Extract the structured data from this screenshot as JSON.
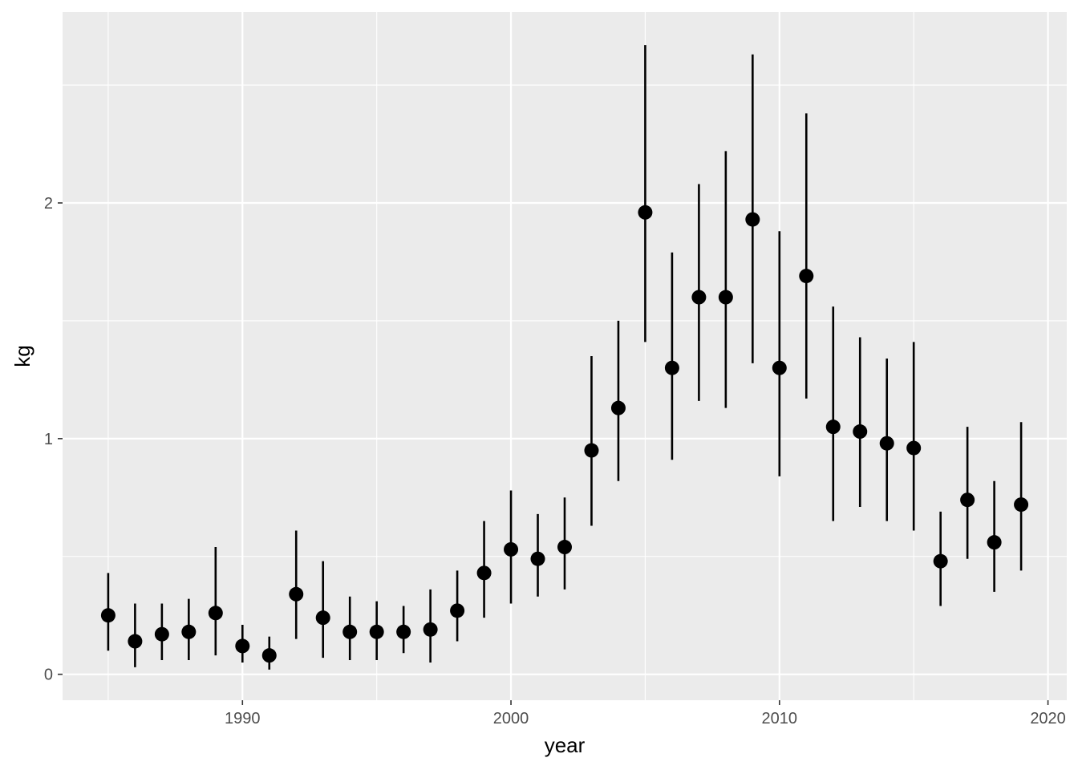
{
  "chart_data": {
    "type": "scatter",
    "xlabel": "year",
    "ylabel": "kg",
    "xlim": [
      1983.3,
      2020.7
    ],
    "ylim": [
      -0.11,
      2.81
    ],
    "x_ticks": [
      1990,
      2000,
      2010,
      2020
    ],
    "y_ticks": [
      0,
      1,
      2
    ],
    "grid": true,
    "background": "#ebebeb",
    "point_color": "#000000",
    "points": [
      {
        "x": 1985,
        "y": 0.25,
        "lo": 0.1,
        "hi": 0.43
      },
      {
        "x": 1986,
        "y": 0.14,
        "lo": 0.03,
        "hi": 0.3
      },
      {
        "x": 1987,
        "y": 0.17,
        "lo": 0.06,
        "hi": 0.3
      },
      {
        "x": 1988,
        "y": 0.18,
        "lo": 0.06,
        "hi": 0.32
      },
      {
        "x": 1989,
        "y": 0.26,
        "lo": 0.08,
        "hi": 0.54
      },
      {
        "x": 1990,
        "y": 0.12,
        "lo": 0.05,
        "hi": 0.21
      },
      {
        "x": 1991,
        "y": 0.08,
        "lo": 0.02,
        "hi": 0.16
      },
      {
        "x": 1992,
        "y": 0.34,
        "lo": 0.15,
        "hi": 0.61
      },
      {
        "x": 1993,
        "y": 0.24,
        "lo": 0.07,
        "hi": 0.48
      },
      {
        "x": 1994,
        "y": 0.18,
        "lo": 0.06,
        "hi": 0.33
      },
      {
        "x": 1995,
        "y": 0.18,
        "lo": 0.06,
        "hi": 0.31
      },
      {
        "x": 1996,
        "y": 0.18,
        "lo": 0.09,
        "hi": 0.29
      },
      {
        "x": 1997,
        "y": 0.19,
        "lo": 0.05,
        "hi": 0.36
      },
      {
        "x": 1998,
        "y": 0.27,
        "lo": 0.14,
        "hi": 0.44
      },
      {
        "x": 1999,
        "y": 0.43,
        "lo": 0.24,
        "hi": 0.65
      },
      {
        "x": 2000,
        "y": 0.53,
        "lo": 0.3,
        "hi": 0.78
      },
      {
        "x": 2001,
        "y": 0.49,
        "lo": 0.33,
        "hi": 0.68
      },
      {
        "x": 2002,
        "y": 0.54,
        "lo": 0.36,
        "hi": 0.75
      },
      {
        "x": 2003,
        "y": 0.95,
        "lo": 0.63,
        "hi": 1.35
      },
      {
        "x": 2004,
        "y": 1.13,
        "lo": 0.82,
        "hi": 1.5
      },
      {
        "x": 2005,
        "y": 1.96,
        "lo": 1.41,
        "hi": 2.67
      },
      {
        "x": 2006,
        "y": 1.3,
        "lo": 0.91,
        "hi": 1.79
      },
      {
        "x": 2007,
        "y": 1.6,
        "lo": 1.16,
        "hi": 2.08
      },
      {
        "x": 2008,
        "y": 1.6,
        "lo": 1.13,
        "hi": 2.22
      },
      {
        "x": 2009,
        "y": 1.93,
        "lo": 1.32,
        "hi": 2.63
      },
      {
        "x": 2010,
        "y": 1.3,
        "lo": 0.84,
        "hi": 1.88
      },
      {
        "x": 2011,
        "y": 1.69,
        "lo": 1.17,
        "hi": 2.38
      },
      {
        "x": 2012,
        "y": 1.05,
        "lo": 0.65,
        "hi": 1.56
      },
      {
        "x": 2013,
        "y": 1.03,
        "lo": 0.71,
        "hi": 1.43
      },
      {
        "x": 2014,
        "y": 0.98,
        "lo": 0.65,
        "hi": 1.34
      },
      {
        "x": 2015,
        "y": 0.96,
        "lo": 0.61,
        "hi": 1.41
      },
      {
        "x": 2016,
        "y": 0.48,
        "lo": 0.29,
        "hi": 0.69
      },
      {
        "x": 2017,
        "y": 0.74,
        "lo": 0.49,
        "hi": 1.05
      },
      {
        "x": 2018,
        "y": 0.56,
        "lo": 0.35,
        "hi": 0.82
      },
      {
        "x": 2019,
        "y": 0.72,
        "lo": 0.44,
        "hi": 1.07
      }
    ]
  }
}
